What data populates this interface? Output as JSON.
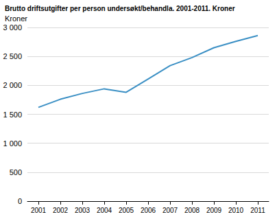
{
  "chart_data": {
    "type": "line",
    "title": "Brutto driftsutgifter per person undersøkt/behandla. 2001-2011. Kroner",
    "y_label": "Kroner",
    "categories": [
      "2001",
      "2002",
      "2003",
      "2004",
      "2005",
      "2006",
      "2007",
      "2008",
      "2009",
      "2010",
      "2011"
    ],
    "values": [
      1620,
      1760,
      1860,
      1940,
      1880,
      2110,
      2340,
      2480,
      2650,
      2760,
      2860
    ],
    "color": "#3a8fc4",
    "ylim": [
      0,
      3000
    ],
    "yticks": [
      0,
      500,
      {
        "value": 1000,
        "label": "1 000"
      },
      {
        "value": 1500,
        "label": "1 500"
      },
      {
        "value": 2000,
        "label": "2 000"
      },
      {
        "value": 2500,
        "label": "2 500"
      },
      {
        "value": 3000,
        "label": "3 000"
      }
    ],
    "grid": true
  }
}
